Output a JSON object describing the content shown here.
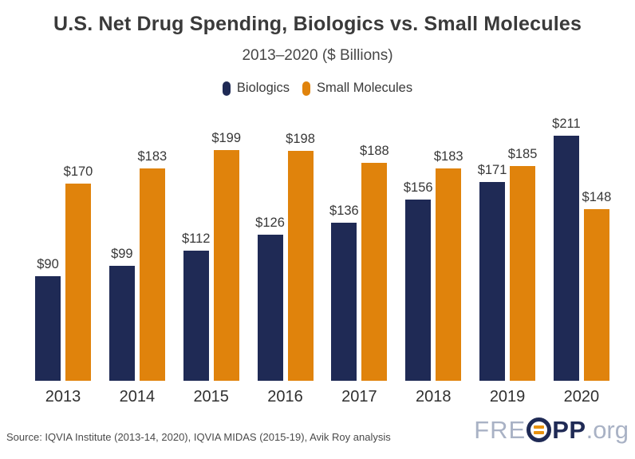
{
  "header": {
    "title": "U.S. Net Drug Spending, Biologics vs. Small Molecules",
    "subtitle": "2013–2020 ($ Billions)"
  },
  "colors": {
    "biologics_navy": "#1f2a55",
    "small_molecules_orange": "#e0830c",
    "title_text": "#3a3a3a",
    "logo_light": "#a9b2c5",
    "logo_accent_orange": "#e8920f"
  },
  "chart_data": {
    "type": "bar",
    "title": "U.S. Net Drug Spending, Biologics vs. Small Molecules",
    "subtitle": "2013–2020 ($ Billions)",
    "categories": [
      "2013",
      "2014",
      "2015",
      "2016",
      "2017",
      "2018",
      "2019",
      "2020"
    ],
    "series": [
      {
        "name": "Biologics",
        "color": "#1f2a55",
        "values": [
          90,
          99,
          112,
          126,
          136,
          156,
          171,
          211
        ]
      },
      {
        "name": "Small Molecules",
        "color": "#e0830c",
        "values": [
          170,
          183,
          199,
          198,
          188,
          183,
          185,
          148
        ]
      }
    ],
    "value_prefix": "$",
    "value_labels": true,
    "xlabel": "",
    "ylabel": "",
    "ylim": [
      0,
      227
    ],
    "grid": false,
    "axis_lines": false,
    "legend_position": "top"
  },
  "footer": {
    "source": "Source: IQVIA Institute (2013-14, 2020), IQVIA MIDAS (2015-19), Avik Roy analysis",
    "logo": {
      "pre": "FRE",
      "bold": "PP",
      "suffix": ".org"
    }
  }
}
